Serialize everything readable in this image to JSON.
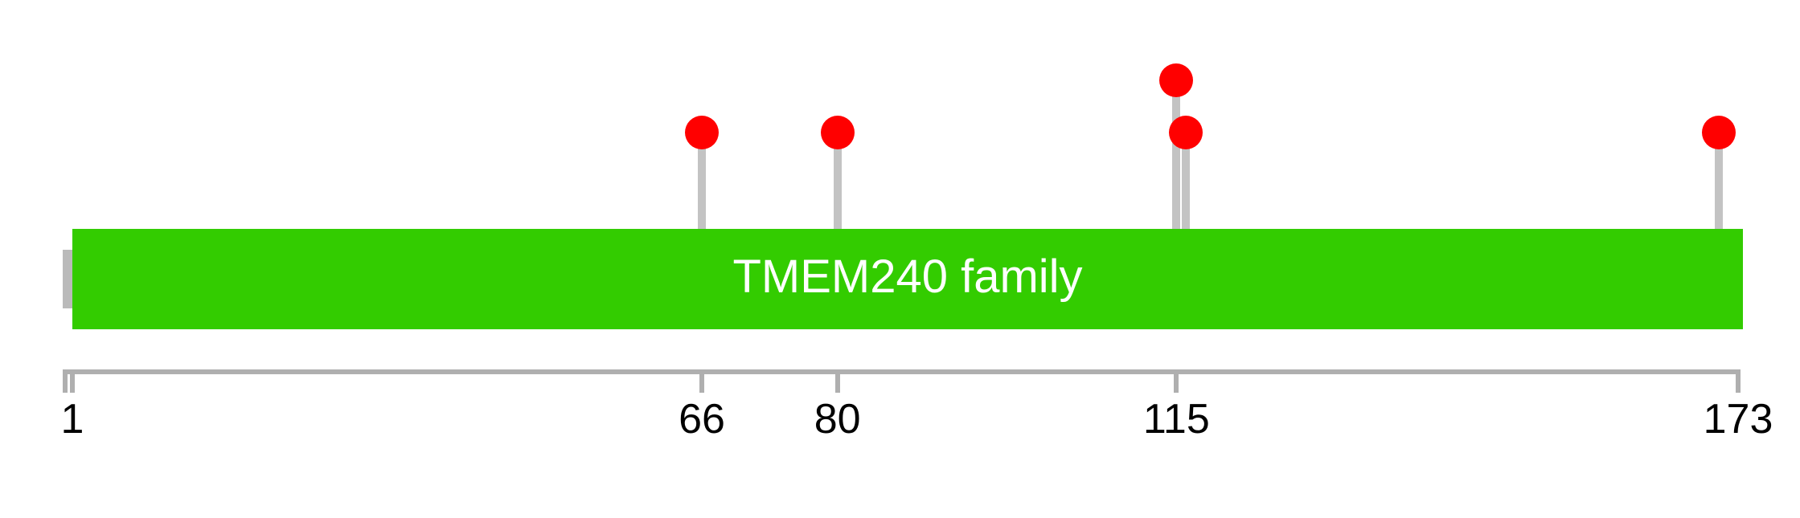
{
  "chart_data": {
    "type": "lollipop",
    "title": "",
    "description": "Protein mutation lollipop plot over a single domain track",
    "domain": {
      "label": "TMEM240 family",
      "start": 1,
      "end": 173,
      "color": "#33cc00",
      "text_color": "#ffffff"
    },
    "protein_length": 173,
    "axis": {
      "tick_positions": [
        1,
        66,
        80,
        115,
        173
      ],
      "tick_labels": [
        "1",
        "66",
        "80",
        "115",
        "173"
      ],
      "range": [
        1,
        173
      ],
      "color": "#afafaf",
      "label_color": "#000000"
    },
    "mutations": [
      {
        "position": 66,
        "level": 1
      },
      {
        "position": 80,
        "level": 1
      },
      {
        "position": 115,
        "level": 2
      },
      {
        "position": 116,
        "level": 1
      },
      {
        "position": 171,
        "level": 1
      }
    ],
    "marker_color": "#ff0000",
    "stem_color": "#c3c3c3",
    "backbone_color": "#bababa",
    "legend_position": "none",
    "grid": false
  }
}
